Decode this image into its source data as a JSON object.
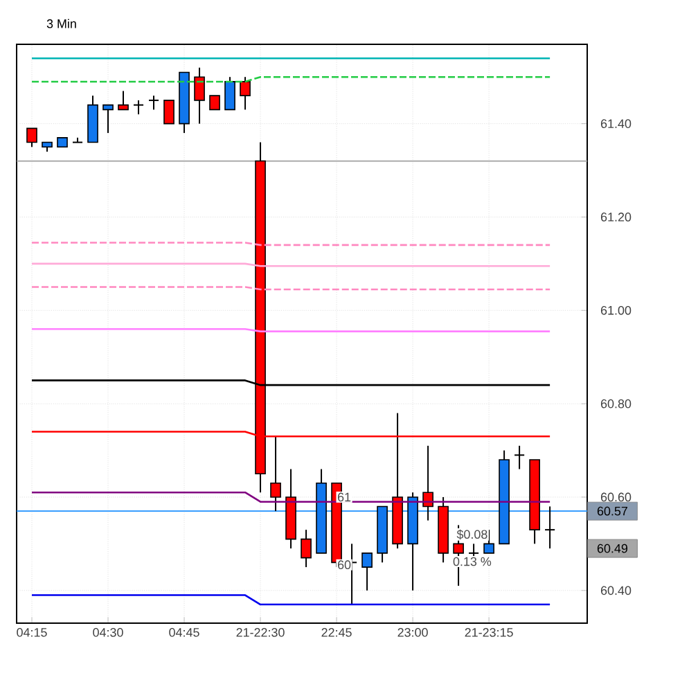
{
  "chart_data": {
    "type": "candlestick",
    "title": "3 Min",
    "categories": [
      "04:15",
      null,
      null,
      null,
      null,
      "04:30",
      null,
      null,
      null,
      null,
      "04:45",
      null,
      null,
      null,
      null,
      "21-22:30",
      null,
      null,
      null,
      null,
      "22:45",
      null,
      null,
      null,
      null,
      "23:00",
      null,
      null,
      null,
      null,
      "21-23:15",
      null,
      null,
      null,
      null
    ],
    "ohlc": [
      [
        61.39,
        61.39,
        61.35,
        61.36
      ],
      [
        61.35,
        61.36,
        61.34,
        61.36
      ],
      [
        61.35,
        61.37,
        61.35,
        61.37
      ],
      [
        61.36,
        61.37,
        61.36,
        61.36
      ],
      [
        61.36,
        61.46,
        61.36,
        61.44
      ],
      [
        61.43,
        61.44,
        61.38,
        61.44
      ],
      [
        61.44,
        61.47,
        61.43,
        61.43
      ],
      [
        61.44,
        61.45,
        61.42,
        61.44
      ],
      [
        61.45,
        61.46,
        61.43,
        61.45
      ],
      [
        61.45,
        61.45,
        61.4,
        61.4
      ],
      [
        61.4,
        61.51,
        61.38,
        61.51
      ],
      [
        61.5,
        61.52,
        61.4,
        61.45
      ],
      [
        61.46,
        61.46,
        61.43,
        61.43
      ],
      [
        61.43,
        61.5,
        61.43,
        61.49
      ],
      [
        61.49,
        61.5,
        61.43,
        61.46
      ],
      [
        61.32,
        61.36,
        60.61,
        60.65
      ],
      [
        60.63,
        60.73,
        60.57,
        60.6
      ],
      [
        60.6,
        60.66,
        60.49,
        60.51
      ],
      [
        60.51,
        60.53,
        60.45,
        60.47
      ],
      [
        60.48,
        60.66,
        60.48,
        60.63
      ],
      [
        60.63,
        60.63,
        60.45,
        60.46
      ],
      [
        60.46,
        60.5,
        60.37,
        60.46
      ],
      [
        60.45,
        60.48,
        60.4,
        60.48
      ],
      [
        60.48,
        60.58,
        60.46,
        60.58
      ],
      [
        60.6,
        60.78,
        60.49,
        60.5
      ],
      [
        60.5,
        60.61,
        60.4,
        60.6
      ],
      [
        60.61,
        60.71,
        60.55,
        60.58
      ],
      [
        60.58,
        60.6,
        60.46,
        60.48
      ],
      [
        60.5,
        60.54,
        60.41,
        60.48
      ],
      [
        60.48,
        60.5,
        60.45,
        60.48
      ],
      [
        60.48,
        60.53,
        60.48,
        60.5
      ],
      [
        60.5,
        60.7,
        60.5,
        60.68
      ],
      [
        60.69,
        60.71,
        60.66,
        60.69
      ],
      [
        60.68,
        60.68,
        60.5,
        60.53
      ],
      [
        60.53,
        60.58,
        60.49,
        60.53
      ]
    ],
    "series": [
      {
        "type": "line",
        "color": "#00b4b4",
        "line_style": "solid",
        "values": [
          61.54,
          61.54,
          61.54,
          61.54,
          61.54,
          61.54,
          61.54,
          61.54,
          61.54,
          61.54,
          61.54,
          61.54,
          61.54,
          61.54,
          61.54,
          61.54,
          61.54,
          61.54,
          61.54,
          61.54,
          61.54,
          61.54,
          61.54,
          61.54,
          61.54,
          61.54,
          61.54,
          61.54,
          61.54,
          61.54,
          61.54,
          61.54,
          61.54,
          61.54,
          61.54
        ]
      },
      {
        "type": "line",
        "color": "#22cc44",
        "line_style": "dashed",
        "values": [
          61.49,
          61.49,
          61.49,
          61.49,
          61.49,
          61.49,
          61.49,
          61.49,
          61.49,
          61.49,
          61.49,
          61.49,
          61.49,
          61.49,
          61.49,
          61.5,
          61.5,
          61.5,
          61.5,
          61.5,
          61.5,
          61.5,
          61.5,
          61.5,
          61.5,
          61.5,
          61.5,
          61.5,
          61.5,
          61.5,
          61.5,
          61.5,
          61.5,
          61.5,
          61.5
        ]
      },
      {
        "type": "line",
        "color": "#ff88c0",
        "line_style": "dashed",
        "values": [
          61.145,
          61.145,
          61.145,
          61.145,
          61.145,
          61.145,
          61.145,
          61.145,
          61.145,
          61.145,
          61.145,
          61.145,
          61.145,
          61.145,
          61.145,
          61.14,
          61.14,
          61.14,
          61.14,
          61.14,
          61.14,
          61.14,
          61.14,
          61.14,
          61.14,
          61.14,
          61.14,
          61.14,
          61.14,
          61.14,
          61.14,
          61.14,
          61.14,
          61.14,
          61.14
        ]
      },
      {
        "type": "line",
        "color": "#ffaad8",
        "line_style": "solid",
        "values": [
          61.1,
          61.1,
          61.1,
          61.1,
          61.1,
          61.1,
          61.1,
          61.1,
          61.1,
          61.1,
          61.1,
          61.1,
          61.1,
          61.1,
          61.1,
          61.095,
          61.095,
          61.095,
          61.095,
          61.095,
          61.095,
          61.095,
          61.095,
          61.095,
          61.095,
          61.095,
          61.095,
          61.095,
          61.095,
          61.095,
          61.095,
          61.095,
          61.095,
          61.095,
          61.095
        ]
      },
      {
        "type": "line",
        "color": "#ff88c0",
        "line_style": "dashed",
        "values": [
          61.05,
          61.05,
          61.05,
          61.05,
          61.05,
          61.05,
          61.05,
          61.05,
          61.05,
          61.05,
          61.05,
          61.05,
          61.05,
          61.05,
          61.05,
          61.045,
          61.045,
          61.045,
          61.045,
          61.045,
          61.045,
          61.045,
          61.045,
          61.045,
          61.045,
          61.045,
          61.045,
          61.045,
          61.045,
          61.045,
          61.045,
          61.045,
          61.045,
          61.045,
          61.045
        ]
      },
      {
        "type": "line",
        "color": "#ff80ff",
        "line_style": "solid",
        "values": [
          60.96,
          60.96,
          60.96,
          60.96,
          60.96,
          60.96,
          60.96,
          60.96,
          60.96,
          60.96,
          60.96,
          60.96,
          60.96,
          60.96,
          60.96,
          60.955,
          60.955,
          60.955,
          60.955,
          60.955,
          60.955,
          60.955,
          60.955,
          60.955,
          60.955,
          60.955,
          60.955,
          60.955,
          60.955,
          60.955,
          60.955,
          60.955,
          60.955,
          60.955,
          60.955
        ]
      },
      {
        "type": "line",
        "color": "#000000",
        "line_style": "solid",
        "values": [
          60.85,
          60.85,
          60.85,
          60.85,
          60.85,
          60.85,
          60.85,
          60.85,
          60.85,
          60.85,
          60.85,
          60.85,
          60.85,
          60.85,
          60.85,
          60.84,
          60.84,
          60.84,
          60.84,
          60.84,
          60.84,
          60.84,
          60.84,
          60.84,
          60.84,
          60.84,
          60.84,
          60.84,
          60.84,
          60.84,
          60.84,
          60.84,
          60.84,
          60.84,
          60.84
        ]
      },
      {
        "type": "line",
        "color": "#ff0000",
        "line_style": "solid",
        "values": [
          60.74,
          60.74,
          60.74,
          60.74,
          60.74,
          60.74,
          60.74,
          60.74,
          60.74,
          60.74,
          60.74,
          60.74,
          60.74,
          60.74,
          60.74,
          60.73,
          60.73,
          60.73,
          60.73,
          60.73,
          60.73,
          60.73,
          60.73,
          60.73,
          60.73,
          60.73,
          60.73,
          60.73,
          60.73,
          60.73,
          60.73,
          60.73,
          60.73,
          60.73,
          60.73
        ]
      },
      {
        "type": "line",
        "color": "#800080",
        "line_style": "solid",
        "values": [
          60.61,
          60.61,
          60.61,
          60.61,
          60.61,
          60.61,
          60.61,
          60.61,
          60.61,
          60.61,
          60.61,
          60.61,
          60.61,
          60.61,
          60.61,
          60.59,
          60.59,
          60.59,
          60.59,
          60.59,
          60.59,
          60.59,
          60.59,
          60.59,
          60.59,
          60.59,
          60.59,
          60.59,
          60.59,
          60.59,
          60.59,
          60.59,
          60.59,
          60.59,
          60.59
        ]
      },
      {
        "type": "line",
        "color": "#0000ee",
        "line_style": "solid",
        "values": [
          60.39,
          60.39,
          60.39,
          60.39,
          60.39,
          60.39,
          60.39,
          60.39,
          60.39,
          60.39,
          60.39,
          60.39,
          60.39,
          60.39,
          60.39,
          60.37,
          60.37,
          60.37,
          60.37,
          60.37,
          60.37,
          60.37,
          60.37,
          60.37,
          60.37,
          60.37,
          60.37,
          60.37,
          60.37,
          60.37,
          60.37,
          60.37,
          60.37,
          60.37,
          60.37
        ]
      }
    ],
    "ref_lines": [
      {
        "axis": "y",
        "value": 61.32,
        "color": "#a0a0a0"
      },
      {
        "axis": "y",
        "value": 60.57,
        "color": "#1e90ff",
        "label": "60.57"
      }
    ],
    "annotations": [
      "61",
      "60",
      "$0.08",
      "0.13 %",
      "60.49"
    ],
    "ylim": [
      60.33,
      61.57
    ],
    "yticks": [
      {
        "value": 60.4,
        "label": "60.40"
      },
      {
        "value": 60.6,
        "label": "60.60"
      },
      {
        "value": 60.8,
        "label": "60.80"
      },
      {
        "value": 61.0,
        "label": "61.00"
      },
      {
        "value": 61.2,
        "label": "61.20"
      },
      {
        "value": 61.4,
        "label": "61.40"
      }
    ],
    "grid": true
  }
}
